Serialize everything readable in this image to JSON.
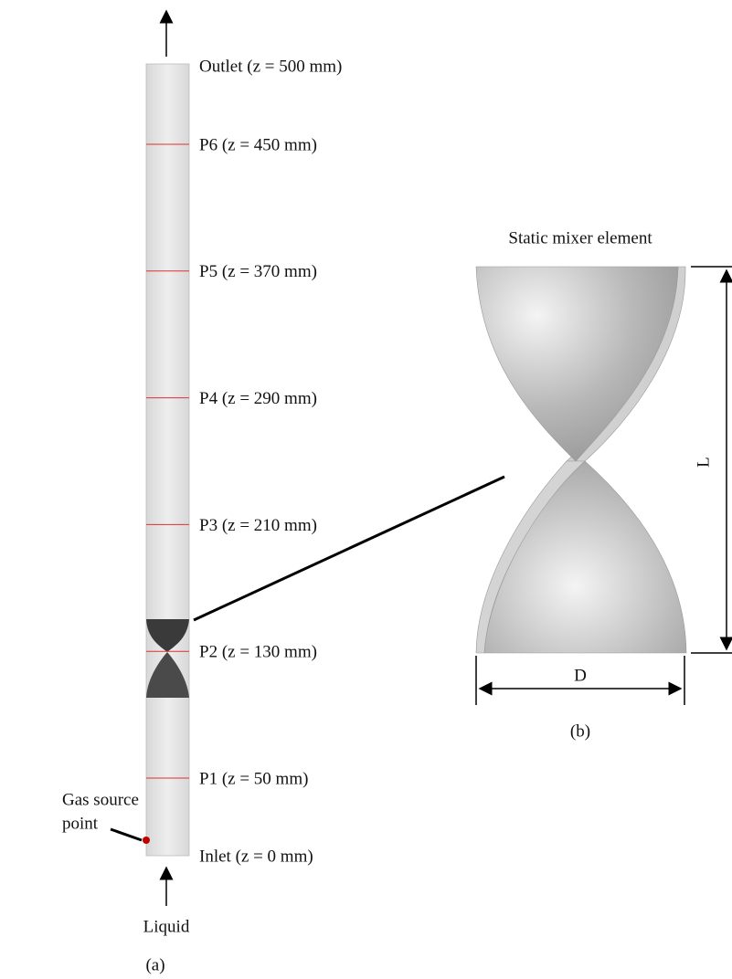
{
  "panel_a": {
    "outlet": "Outlet (z = 500 mm)",
    "probes": [
      "P6 (z = 450 mm)",
      "P5 (z = 370 mm)",
      "P4 (z = 290 mm)",
      "P3 (z = 210 mm)",
      "P2 (z = 130 mm)",
      "P1 (z = 50 mm)"
    ],
    "inlet": "Inlet (z = 0 mm)",
    "gas_source": [
      "Gas source",
      "point"
    ],
    "liquid": "Liquid",
    "caption": "(a)"
  },
  "panel_b": {
    "title": "Static mixer element",
    "length_label": "L",
    "diameter_label": "D",
    "caption": "(b)"
  }
}
